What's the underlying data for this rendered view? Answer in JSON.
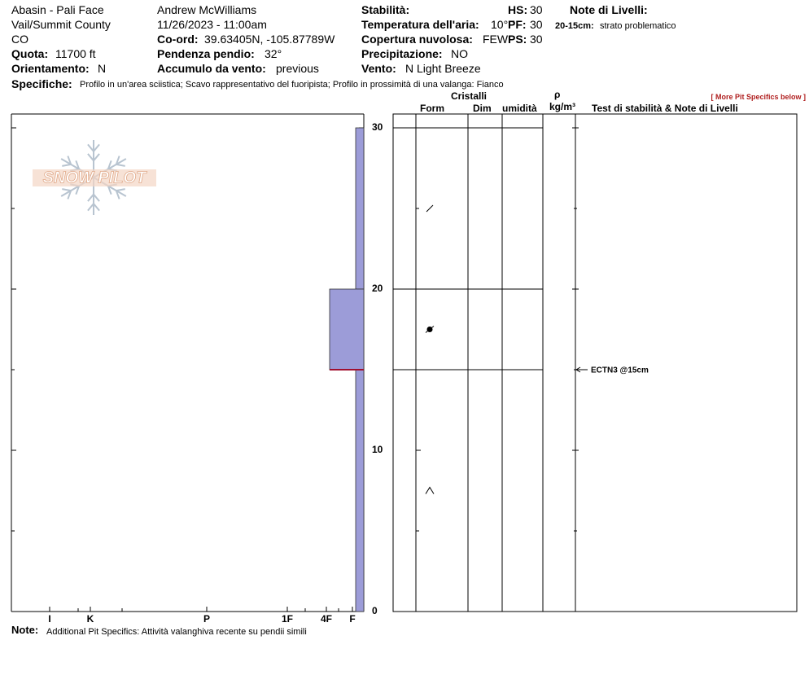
{
  "header": {
    "location": "Abasin - Pali Face",
    "region": "Vail/Summit County",
    "state": "CO",
    "elevation": {
      "label": "Quota:",
      "value": "11700 ft"
    },
    "aspect": {
      "label": "Orientamento:",
      "value": "N"
    },
    "observer": "Andrew McWilliams",
    "datetime": "11/26/2023 - 11:00am",
    "coords": {
      "label": "Co-ord:",
      "value": "39.63405N, -105.87789W"
    },
    "slope": {
      "label": "Pendenza pendio:",
      "value": "32°"
    },
    "wind_loading": {
      "label": "Accumulo da vento:",
      "value": "previous"
    },
    "stability": {
      "label": "Stabilità:"
    },
    "air_temp": {
      "label": "Temperatura dell'aria:",
      "value": "10°F"
    },
    "sky": {
      "label": "Copertura nuvolosa:",
      "value": "FEW"
    },
    "precip": {
      "label": "Precipitazione:",
      "value": "NO"
    },
    "wind": {
      "label": "Vento:",
      "value": "N Light Breeze"
    },
    "hs": {
      "label": "HS:",
      "value": 30
    },
    "pf": {
      "label": "PF:",
      "value": 30
    },
    "ps": {
      "label": "PS:",
      "value": 30
    },
    "layer_notes": {
      "label": "Note di Livelli:",
      "range": "20-15cm:",
      "text": "strato problematico"
    },
    "specifics": {
      "label": "Specifiche:",
      "value": "Profilo in un'area sciistica; Scavo rappresentativo del fuoripista; Profilo in prossimità di una valanga: Fianco"
    }
  },
  "more_link": "[ More Pit Specifics below ]",
  "logo": "SNOW PILOT",
  "columns": {
    "crystals": "Cristalli",
    "form": "Form",
    "size": "Dim",
    "moisture": "umidità",
    "density_symbol": "ρ",
    "density_unit": "kg/m³",
    "tests": "Test di stabilità & Note di Livelli"
  },
  "note": {
    "label": "Note:",
    "value": "Additional Pit Specifics: Attività valanghiva recente su pendii simili"
  },
  "chart_data": {
    "type": "snowpit",
    "ylim": [
      0,
      30
    ],
    "yticks": [
      0,
      10,
      20,
      30
    ],
    "hardness_scale": [
      "I",
      "K",
      "P",
      "1F",
      "4F",
      "F"
    ],
    "color": "#9c9cd8",
    "layers": [
      {
        "top": 30,
        "bottom": 20,
        "hardness": "F"
      },
      {
        "top": 20,
        "bottom": 15,
        "hardness": "4F"
      },
      {
        "top": 15,
        "bottom": 0,
        "hardness": "F"
      }
    ],
    "weak_layer": 15,
    "grains": [
      {
        "depth": 25,
        "form": "DF"
      },
      {
        "depth": 17.5,
        "form": "MFcr"
      },
      {
        "depth": 7.5,
        "form": "DH"
      }
    ],
    "tests": [
      {
        "depth": 15,
        "label": "ECTN3 @15cm"
      }
    ]
  }
}
